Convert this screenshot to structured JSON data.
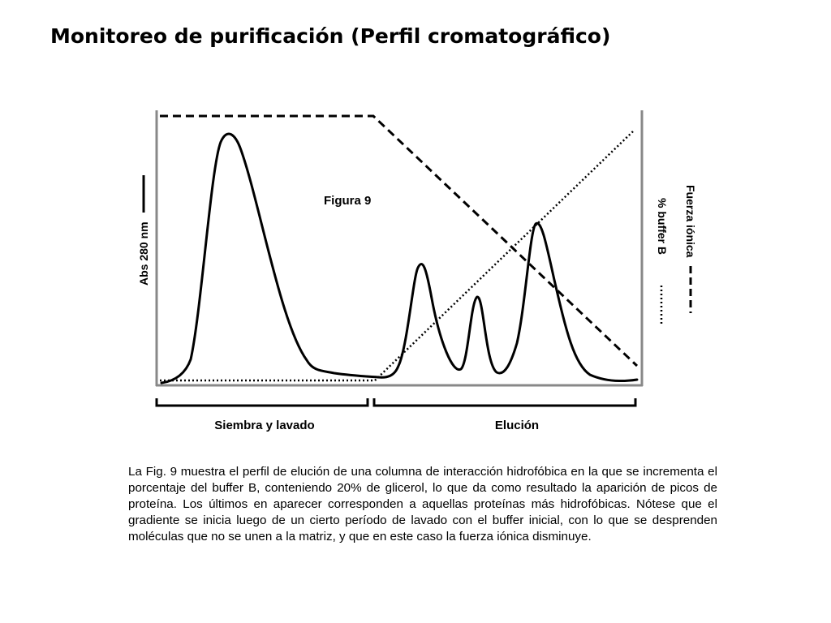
{
  "page": {
    "title": "Monitoreo de purificación (Perfil cromatográfico)"
  },
  "figure": {
    "label": "Figura 9",
    "y_left_label": "Abs 280 nm",
    "y_right_label_1": "Fuerza iónica",
    "y_right_label_2": "% buffer B",
    "segments": [
      {
        "label": "Siembra y lavado"
      },
      {
        "label": "Elución"
      }
    ],
    "legend_styles": {
      "absorbance": "solid",
      "ionic_strength": "dashed",
      "buffer_b": "dotted"
    }
  },
  "caption": {
    "text": "La Fig. 9 muestra el perfil de elución de una columna de interacción hidrofóbica en la que se incrementa el porcentaje del buffer B, conteniendo 20% de glicerol, lo que da como resultado la aparición de picos de proteína. Los últimos en aparecer corresponden a aquellas proteínas más hidrofóbicas. Nótese que el gradiente se inicia luego de un cierto período de lavado con el buffer inicial, con lo que se desprenden moléculas que no se unen a la matriz, y que en este caso la fuerza iónica disminuye."
  }
}
